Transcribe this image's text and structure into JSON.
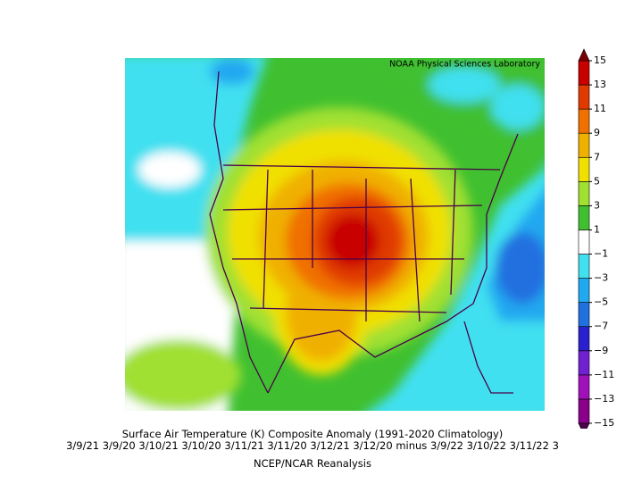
{
  "header": {
    "source": "NOAA Physical Sciences Laboratory"
  },
  "colorbar": {
    "range": [
      -15,
      15
    ],
    "ticks": [
      15,
      13,
      11,
      9,
      7,
      5,
      3,
      1,
      {
        "value": -1,
        "label": "−1"
      },
      {
        "value": -3,
        "label": "−3"
      },
      {
        "value": -5,
        "label": "−5"
      },
      {
        "value": -7,
        "label": "−7"
      },
      {
        "value": -9,
        "label": "−9"
      },
      {
        "value": -11,
        "label": "−11"
      },
      {
        "value": -13,
        "label": "−13"
      },
      {
        "value": -15,
        "label": "−15"
      }
    ],
    "colors": [
      "#8a008a",
      "#a010b8",
      "#7020d0",
      "#2a20d0",
      "#2070e0",
      "#20a8f0",
      "#40e0f0",
      "#ffffff",
      "#40c030",
      "#a0e030",
      "#f0e000",
      "#f0b000",
      "#f07000",
      "#e03a00",
      "#c80000"
    ],
    "under_color": "#4a004a",
    "over_color": "#7a0000"
  },
  "caption": {
    "title": "Surface Air Temperature (K) Composite Anomaly (1991-2020 Climatology)",
    "dates": "3/9/21 3/9/20 3/10/21 3/10/20 3/11/21 3/11/20 3/12/21 3/12/20 minus 3/9/22 3/10/22 3/11/22 3",
    "source": "NCEP/NCAR Reanalysis"
  }
}
